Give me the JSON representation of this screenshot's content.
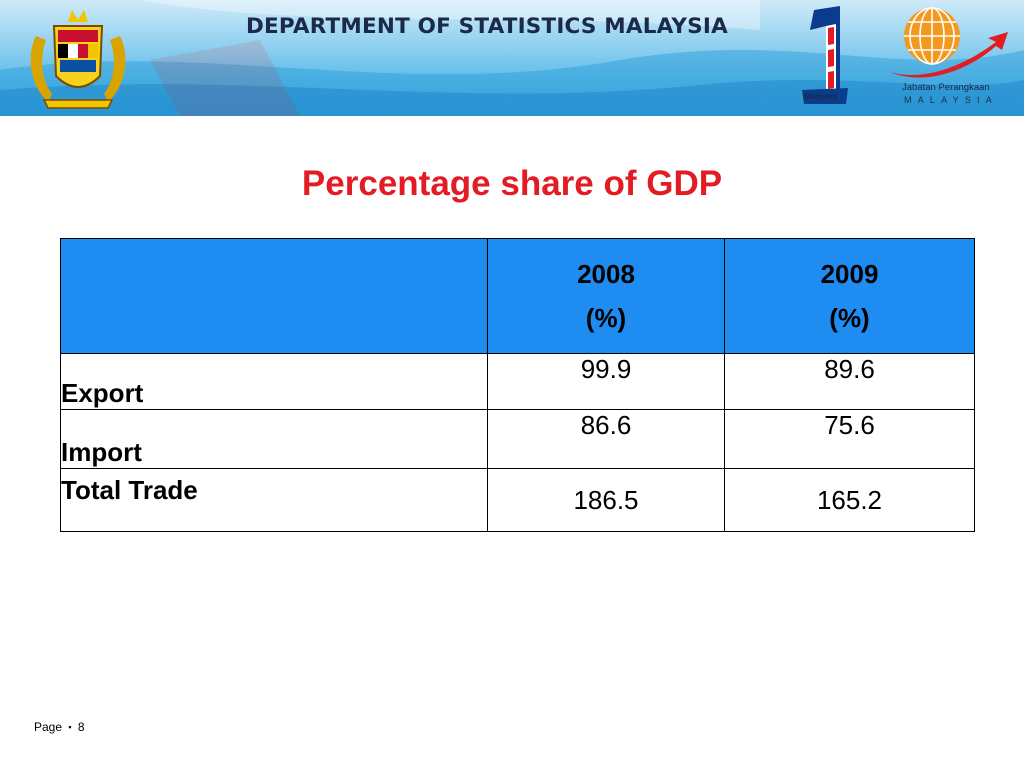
{
  "banner": {
    "title": "DEPARTMENT OF STATISTICS MALAYSIA",
    "one_malaysia_text": "Malaysia",
    "dosm_caption_line1": "Jabatan Perangkaan",
    "dosm_caption_line2": "MALAYSIA"
  },
  "slide": {
    "title": "Percentage share of GDP"
  },
  "table": {
    "header": {
      "col_blank": "",
      "col_2008_year": "2008",
      "col_2008_unit": "(%)",
      "col_2009_year": "2009",
      "col_2009_unit": "(%)"
    },
    "rows": [
      {
        "label": "Export",
        "v2008": "99.9",
        "v2009": "89.6"
      },
      {
        "label": "Import",
        "v2008": "86.6",
        "v2009": "75.6"
      },
      {
        "label": "Total Trade",
        "v2008": "186.5",
        "v2009": "165.2"
      }
    ]
  },
  "footer": {
    "page_label": "Page",
    "bullet": "▪",
    "page_number": "8"
  },
  "colors": {
    "title_red": "#e31b23",
    "header_blue": "#1f8cf2",
    "banner_blue": "#3aa7df"
  },
  "icons": [
    "coat-of-arms-icon",
    "one-malaysia-logo-icon",
    "dosm-globe-logo-icon"
  ]
}
